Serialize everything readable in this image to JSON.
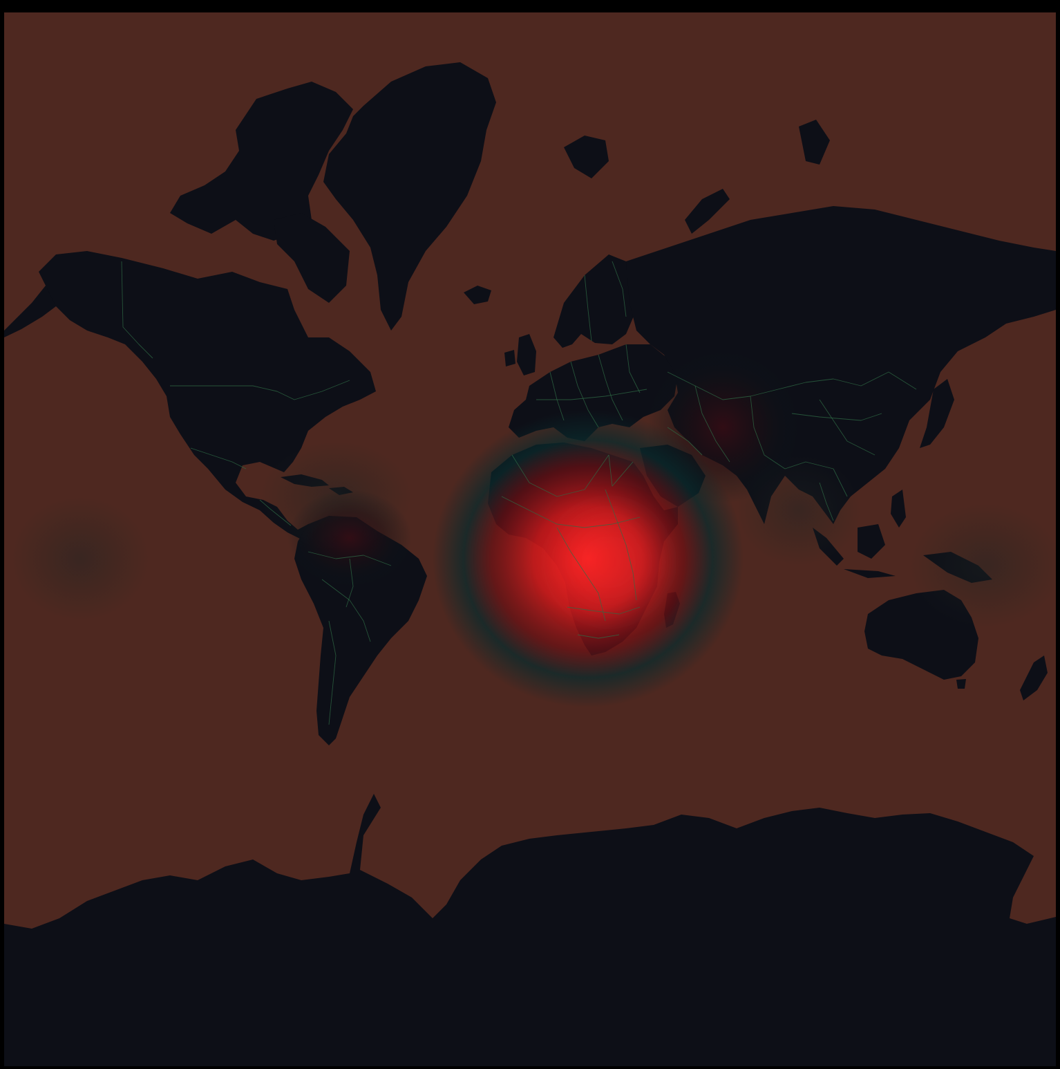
{
  "map": {
    "projection": "mercator",
    "colors": {
      "frame": "#000000",
      "ocean": "#4e2820",
      "land": "#0d0f17",
      "border": "#2f6b45",
      "hotspot_core": "#ff2020",
      "hotspot_mid": "#9a1418",
      "hotspot_halo": "#0a2e30"
    },
    "regions": [
      "north-america",
      "greenland",
      "south-america",
      "europe",
      "africa",
      "madagascar",
      "asia",
      "australia",
      "new-zealand",
      "antarctica",
      "iceland",
      "indonesia",
      "japan",
      "britain",
      "arabia",
      "svalbard",
      "novaya-zemlya"
    ],
    "heat_intensity": [
      {
        "region": "central-africa",
        "level": 1.0
      },
      {
        "region": "southern-africa",
        "level": 0.8
      },
      {
        "region": "west-africa",
        "level": 0.75
      },
      {
        "region": "east-africa",
        "level": 0.6
      },
      {
        "region": "central-asia",
        "level": 0.25
      },
      {
        "region": "northern-south-america",
        "level": 0.2
      },
      {
        "region": "south-asia",
        "level": 0.15
      },
      {
        "region": "western-pacific",
        "level": 0.1
      },
      {
        "region": "central-pacific",
        "level": 0.06
      }
    ]
  }
}
